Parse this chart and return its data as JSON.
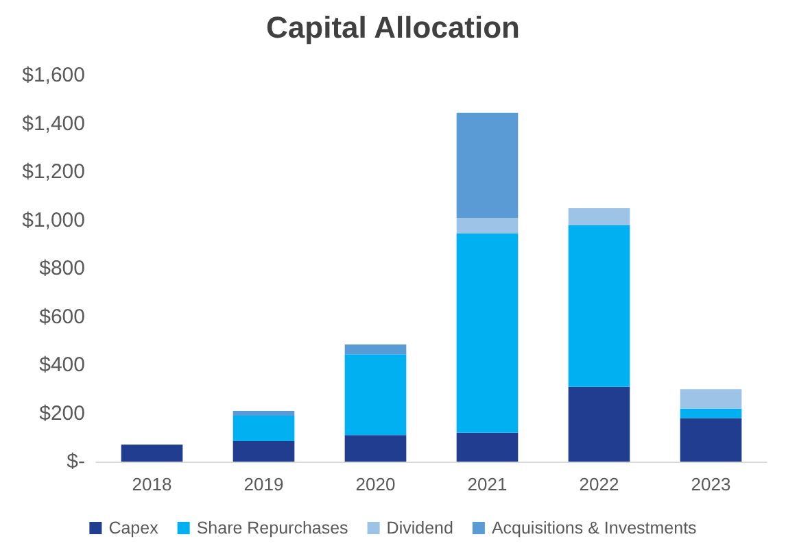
{
  "chart_data": {
    "type": "bar",
    "title": "Capital Allocation",
    "stacked": true,
    "legend": "bottom",
    "grid": false,
    "categories": [
      "2018",
      "2019",
      "2020",
      "2021",
      "2022",
      "2023"
    ],
    "ylim": [
      0,
      1600
    ],
    "yticks": [
      {
        "value": 0,
        "label": "$-"
      },
      {
        "value": 200,
        "label": "$200"
      },
      {
        "value": 400,
        "label": "$400"
      },
      {
        "value": 600,
        "label": "$600"
      },
      {
        "value": 800,
        "label": "$800"
      },
      {
        "value": 1000,
        "label": "$1,000"
      },
      {
        "value": 1200,
        "label": "$1,200"
      },
      {
        "value": 1400,
        "label": "$1,400"
      },
      {
        "value": 1600,
        "label": "$1,600"
      }
    ],
    "series": [
      {
        "name": "Capex",
        "color": "#203d8f",
        "values": [
          70,
          85,
          110,
          120,
          310,
          180
        ]
      },
      {
        "name": "Share Repurchases",
        "color": "#00b0f0",
        "values": [
          null,
          105,
          335,
          825,
          670,
          40
        ]
      },
      {
        "name": "Dividend",
        "color": "#9dc3e6",
        "values": [
          null,
          null,
          null,
          65,
          70,
          80
        ]
      },
      {
        "name": "Acquisitions & Investments",
        "color": "#5b9bd5",
        "values": [
          null,
          20,
          40,
          435,
          null,
          null
        ]
      }
    ]
  }
}
